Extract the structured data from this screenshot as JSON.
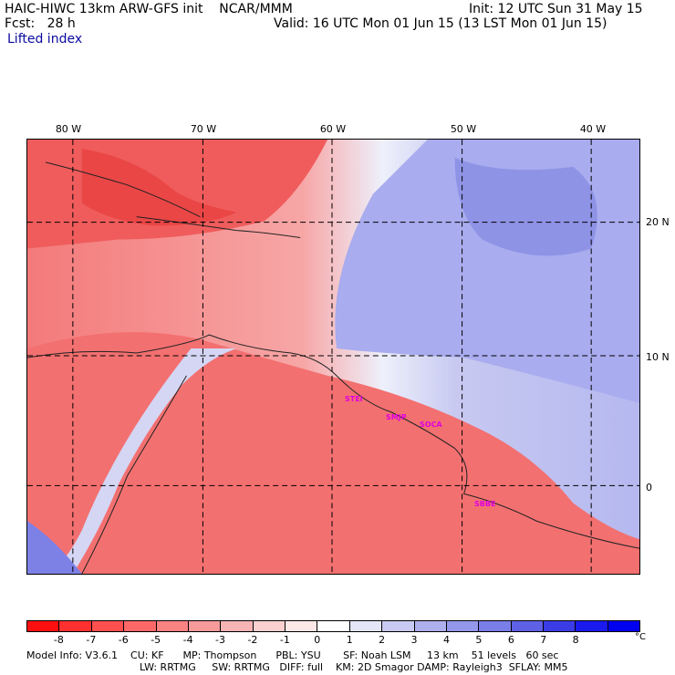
{
  "header": {
    "title": "HAIC-HIWC 13km ARW-GFS init    NCAR/MMM",
    "init": "Init: 12 UTC Sun 31 May 15",
    "fcst": "Fcst:   28 h",
    "valid": "Valid: 16 UTC Mon 01 Jun 15 (13 LST Mon 01 Jun 15)",
    "field": "Lifted index"
  },
  "axes": {
    "lon_labels": [
      "80 W",
      "70 W",
      "60 W",
      "50 W",
      "40 W"
    ],
    "lat_labels": [
      "20 N",
      "10 N",
      "0"
    ]
  },
  "stations": [
    "STEI",
    "SMJP",
    "SOCA",
    "SBBE"
  ],
  "colorbar": {
    "ticks": [
      "-8",
      "-7",
      "-6",
      "-5",
      "-4",
      "-3",
      "-2",
      "-1",
      "0",
      "1",
      "2",
      "3",
      "4",
      "5",
      "6",
      "7",
      "8"
    ],
    "unit": "°C",
    "colors": [
      "#ff1010",
      "#ff3030",
      "#ff5050",
      "#fc6868",
      "#f98282",
      "#f69a9a",
      "#f6b4b4",
      "#fad0d0",
      "#fde8e8",
      "#ffffff",
      "#e4e6f8",
      "#c8caf2",
      "#aeb0ee",
      "#9498ec",
      "#7a7ee8",
      "#5e60e6",
      "#3c3ce6",
      "#1a1aee",
      "#0000f0"
    ]
  },
  "model_info": {
    "line1": "Model Info: V3.6.1    CU: KF      MP: Thompson      PBL: YSU       SF: Noah LSM     13 km    51 levels   60 sec",
    "line2": "LW: RRTMG     SW: RRTMG   DIFF: full    KM: 2D Smagor DAMP: Rayleigh3  SFLAY: MM5"
  }
}
